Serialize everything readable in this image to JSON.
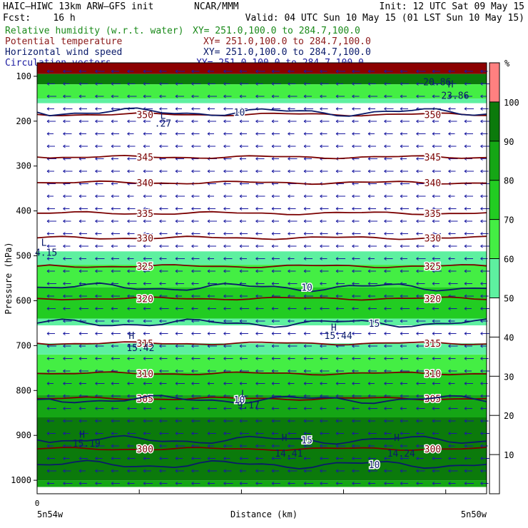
{
  "header": {
    "model": "HAIC–HIWC 13km ARW–GFS init",
    "center": "NCAR/MMM",
    "init": "Init: 12 UTC Sat 09 May 15",
    "fcst": "Fcst:    16 h",
    "valid": "Valid: 04 UTC Sun 10 May 15 (01 LST Sun 10 May 15)"
  },
  "fields": [
    {
      "name": "Relative humidity (w.r.t. water)",
      "xy": "XY= 251.0,100.0 to 284.7,100.0",
      "color": "#1a8a1a"
    },
    {
      "name": "Potential temperature",
      "xy": "XY= 251.0,100.0 to 284.7,100.0",
      "color": "#8b1a1a"
    },
    {
      "name": "Horizontal wind speed",
      "xy": "XY= 251.0,100.0 to 284.7,100.0",
      "color": "#0a1a6a"
    },
    {
      "name": "Circulation vectors",
      "xy": "XY= 251.0,100.0 to 284.7,100.0",
      "color": "#1a1aa0"
    }
  ],
  "chart_data": {
    "type": "heatmap",
    "ylabel": "Pressure (hPa)",
    "xlabel": "Distance (km)",
    "x_tick_labels": [
      "0"
    ],
    "x_endpoint_labels": [
      "5n54w",
      "5n50w"
    ],
    "yticks": [
      100,
      200,
      300,
      400,
      500,
      600,
      700,
      800,
      900,
      1000
    ],
    "ylim": [
      1030,
      70
    ],
    "colorbar": {
      "unit": "%",
      "levels": [
        10,
        20,
        30,
        40,
        50,
        60,
        70,
        80,
        90,
        100
      ],
      "bands": [
        {
          "from": 50,
          "to": 60,
          "color": "#5ef0a0"
        },
        {
          "from": 60,
          "to": 70,
          "color": "#44ee44"
        },
        {
          "from": 70,
          "to": 80,
          "color": "#22cc22"
        },
        {
          "from": 80,
          "to": 90,
          "color": "#15a615"
        },
        {
          "from": 90,
          "to": 100,
          "color": "#0b7a0b"
        },
        {
          "from": 100,
          "to": 110,
          "color": "#ff8080"
        }
      ]
    },
    "rh_layers": [
      {
        "top": 70,
        "bottom": 95,
        "color": "#8b0000"
      },
      {
        "top": 95,
        "bottom": 118,
        "color": "#0b7a0b"
      },
      {
        "top": 118,
        "bottom": 150,
        "color": "#44ee44"
      },
      {
        "top": 150,
        "bottom": 160,
        "color": "#5ef0a0"
      },
      {
        "top": 490,
        "bottom": 520,
        "color": "#5ef0a0"
      },
      {
        "top": 520,
        "bottom": 570,
        "color": "#44ee44"
      },
      {
        "top": 570,
        "bottom": 640,
        "color": "#22cc22"
      },
      {
        "top": 640,
        "bottom": 655,
        "color": "#5ef0a0"
      },
      {
        "top": 695,
        "bottom": 720,
        "color": "#5ef0a0"
      },
      {
        "top": 720,
        "bottom": 760,
        "color": "#44ee44"
      },
      {
        "top": 760,
        "bottom": 810,
        "color": "#22cc22"
      },
      {
        "top": 810,
        "bottom": 860,
        "color": "#15a615"
      },
      {
        "top": 860,
        "bottom": 1000,
        "color": "#0b7a0b"
      },
      {
        "top": 1000,
        "bottom": 1015,
        "color": "#15a615"
      }
    ],
    "theta_contours": [
      {
        "label": "350",
        "p": 185
      },
      {
        "label": "345",
        "p": 280
      },
      {
        "label": "340",
        "p": 337
      },
      {
        "label": "335",
        "p": 405
      },
      {
        "label": "330",
        "p": 460
      },
      {
        "label": "325",
        "p": 523
      },
      {
        "label": "320",
        "p": 595
      },
      {
        "label": "315",
        "p": 695
      },
      {
        "label": "310",
        "p": 762
      },
      {
        "label": "305",
        "p": 818
      },
      {
        "label": "300",
        "p": 930
      }
    ],
    "wind_contours": [
      {
        "label": "10",
        "p": 180
      },
      {
        "label": "10",
        "p": 570
      },
      {
        "label": "15",
        "p": 650
      },
      {
        "label": "10",
        "p": 820
      },
      {
        "label": "15",
        "p": 910
      },
      {
        "label": "10",
        "p": 965
      }
    ],
    "annotations": [
      {
        "text": "H",
        "x": 0.92,
        "p": 125
      },
      {
        "text": "23.86",
        "x": 0.93,
        "p": 150
      },
      {
        "text": "20.86",
        "x": 0.89,
        "p": 120
      },
      {
        "text": "L",
        "x": 0.28,
        "p": 195
      },
      {
        "text": ".27",
        "x": 0.28,
        "p": 212
      },
      {
        "text": "L",
        "x": 0.015,
        "p": 478
      },
      {
        "text": "4.15",
        "x": 0.02,
        "p": 500
      },
      {
        "text": "H",
        "x": 0.66,
        "p": 667
      },
      {
        "text": "15.44",
        "x": 0.67,
        "p": 685
      },
      {
        "text": "H",
        "x": 0.21,
        "p": 685
      },
      {
        "text": "15.42",
        "x": 0.23,
        "p": 712
      },
      {
        "text": "L",
        "x": 0.46,
        "p": 815
      },
      {
        "text": "9.17",
        "x": 0.47,
        "p": 840
      },
      {
        "text": "H",
        "x": 0.1,
        "p": 905
      },
      {
        "text": "15.19",
        "x": 0.11,
        "p": 925
      },
      {
        "text": "H",
        "x": 0.55,
        "p": 912
      },
      {
        "text": "14.41",
        "x": 0.56,
        "p": 947
      },
      {
        "text": "H",
        "x": 0.8,
        "p": 912
      },
      {
        "text": "14.24",
        "x": 0.81,
        "p": 947
      }
    ]
  }
}
